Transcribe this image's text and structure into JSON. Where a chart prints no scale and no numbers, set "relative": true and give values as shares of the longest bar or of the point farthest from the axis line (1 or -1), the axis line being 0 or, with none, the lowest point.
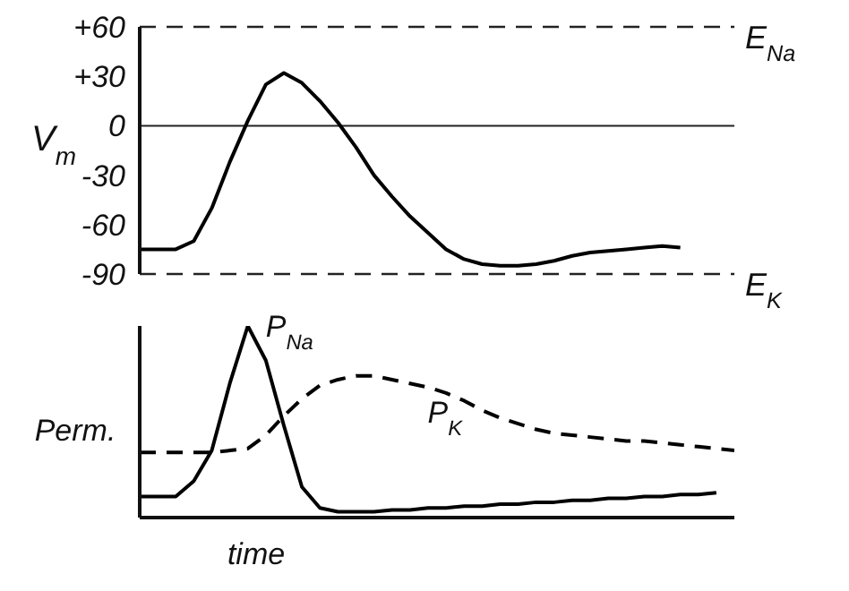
{
  "chart_data": [
    {
      "type": "line",
      "ylabel": "V$_{m}$",
      "categories": [
        null,
        null,
        null,
        null,
        null,
        null,
        null,
        null,
        null,
        null,
        null,
        null,
        null,
        null,
        null,
        null,
        null,
        null,
        null,
        null,
        null,
        null,
        null,
        null,
        null,
        null,
        null,
        null,
        null,
        null,
        null,
        null,
        null,
        null
      ],
      "series": [
        {
          "color": "#000000",
          "values": [
            -75,
            -75,
            -75,
            -70,
            -50,
            -22,
            3,
            25,
            32,
            26,
            15,
            2,
            -13,
            -30,
            -43,
            -55,
            -65,
            -75,
            -81,
            -84,
            -85,
            -85,
            -84,
            -82,
            -79,
            -77,
            -76,
            -75,
            -74,
            -73,
            -74,
            null,
            null,
            null
          ]
        }
      ],
      "ylim": [
        -90,
        60
      ],
      "yticks": [
        {
          "value": 60,
          "label": "+60"
        },
        {
          "value": 30,
          "label": "+30"
        },
        0,
        -30,
        -60,
        -90
      ],
      "ref_lines": [
        {
          "axis": "y",
          "value": 60,
          "label": "E$_{Na}$",
          "line_style": "dashed"
        },
        {
          "axis": "y",
          "value": 0
        },
        {
          "axis": "y",
          "value": -90,
          "label": "E$_{K}$",
          "line_style": "dashed"
        }
      ],
      "tick_labels": "y"
    },
    {
      "type": "line",
      "relative": true,
      "xlabel": "time",
      "ylabel": "Perm.",
      "categories": [
        null,
        null,
        null,
        null,
        null,
        null,
        null,
        null,
        null,
        null,
        null,
        null,
        null,
        null,
        null,
        null,
        null,
        null,
        null,
        null,
        null,
        null,
        null,
        null,
        null,
        null,
        null,
        null,
        null,
        null,
        null,
        null,
        null,
        null
      ],
      "series": [
        {
          "name": "P$_{Na}$",
          "color": "#000000",
          "values": [
            0.11,
            0.11,
            0.11,
            0.19,
            0.35,
            0.7,
            1,
            0.82,
            0.48,
            0.16,
            0.05,
            0.03,
            0.03,
            0.03,
            0.04,
            0.04,
            0.05,
            0.05,
            0.06,
            0.06,
            0.07,
            0.07,
            0.08,
            0.08,
            0.09,
            0.09,
            0.1,
            0.1,
            0.11,
            0.11,
            0.12,
            0.12,
            0.13,
            null
          ]
        },
        {
          "name": "P$_{K}$",
          "color": "#000000",
          "line_style": "dashed",
          "values": [
            0.34,
            0.34,
            0.34,
            0.34,
            0.34,
            0.35,
            0.36,
            0.43,
            0.53,
            0.62,
            0.69,
            0.72,
            0.74,
            0.74,
            0.72,
            0.7,
            0.68,
            0.65,
            0.61,
            0.56,
            0.52,
            0.49,
            0.46,
            0.44,
            0.43,
            0.42,
            0.41,
            0.4,
            0.4,
            0.39,
            0.38,
            0.37,
            0.36,
            0.35
          ]
        }
      ],
      "tick_labels": false
    }
  ]
}
